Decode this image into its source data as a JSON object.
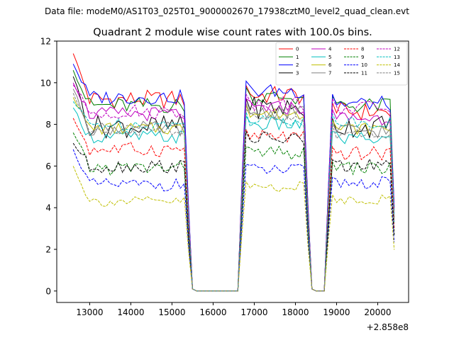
{
  "figure": {
    "suptitle": "Data file: modeM0/AS1T03_025T01_9000002670_17938cztM0_level2_quad_clean.evt",
    "offset_label": "+2.858e8"
  },
  "chart_data": {
    "type": "line",
    "title": "Quadrant 2 module wise count rates with 100.0s bins.",
    "xlabel": "",
    "ylabel": "",
    "x_offset": 285800000,
    "xlim": [
      12200,
      20750
    ],
    "ylim": [
      -0.55,
      12.0
    ],
    "xticks": [
      13000,
      14000,
      15000,
      16000,
      17000,
      18000,
      19000,
      20000
    ],
    "xtick_labels": [
      "13000",
      "14000",
      "15000",
      "16000",
      "17000",
      "18000",
      "19000",
      "20000"
    ],
    "yticks": [
      0,
      2,
      4,
      6,
      8,
      10,
      12
    ],
    "ytick_labels": [
      "0",
      "2",
      "4",
      "6",
      "8",
      "10",
      "12"
    ],
    "grid": false,
    "legend_position": "top-right",
    "legend_columns": 4,
    "segments": [
      {
        "x_start": 12600,
        "x_end": 15400,
        "step": 100
      },
      {
        "x_start": 16700,
        "x_end": 18300,
        "step": 100
      },
      {
        "x_start": 18800,
        "x_end": 20400,
        "step": 100
      }
    ],
    "gap_level": 0.0,
    "series": [
      {
        "name": "0",
        "color": "#ff0000",
        "dash": "solid",
        "levels": [
          11.4,
          9.2,
          9.4,
          8.6
        ],
        "amp": 0.45
      },
      {
        "name": "1",
        "color": "#008000",
        "dash": "solid",
        "levels": [
          10.6,
          8.9,
          9.3,
          8.9
        ],
        "amp": 0.4
      },
      {
        "name": "2",
        "color": "#0000ff",
        "dash": "solid",
        "levels": [
          10.9,
          9.3,
          9.6,
          9.0
        ],
        "amp": 0.35
      },
      {
        "name": "3",
        "color": "#000000",
        "dash": "solid",
        "levels": [
          10.3,
          7.9,
          8.8,
          7.9
        ],
        "amp": 0.55
      },
      {
        "name": "4",
        "color": "#bf00bf",
        "dash": "solid",
        "levels": [
          10.0,
          8.5,
          8.8,
          8.3
        ],
        "amp": 0.35
      },
      {
        "name": "5",
        "color": "#00bfbf",
        "dash": "solid",
        "levels": [
          8.8,
          7.4,
          8.0,
          7.3
        ],
        "amp": 0.35
      },
      {
        "name": "6",
        "color": "#bfbf00",
        "dash": "solid",
        "levels": [
          9.3,
          7.8,
          8.5,
          7.8
        ],
        "amp": 0.3
      },
      {
        "name": "7",
        "color": "#808080",
        "dash": "solid",
        "levels": [
          9.7,
          7.8,
          8.6,
          7.7
        ],
        "amp": 0.35
      },
      {
        "name": "8",
        "color": "#ff0000",
        "dash": "dashed",
        "levels": [
          8.3,
          6.8,
          7.4,
          6.6
        ],
        "amp": 0.35
      },
      {
        "name": "9",
        "color": "#008000",
        "dash": "dashed",
        "levels": [
          7.6,
          5.9,
          6.6,
          5.9
        ],
        "amp": 0.35
      },
      {
        "name": "10",
        "color": "#0000ff",
        "dash": "dashed",
        "levels": [
          6.8,
          5.1,
          5.8,
          5.2
        ],
        "amp": 0.3
      },
      {
        "name": "11",
        "color": "#000000",
        "dash": "dashed",
        "levels": [
          7.1,
          6.0,
          7.3,
          6.0
        ],
        "amp": 0.35
      },
      {
        "name": "12",
        "color": "#bf00bf",
        "dash": "dashed",
        "levels": [
          9.9,
          8.6,
          9.0,
          8.8
        ],
        "amp": 0.35
      },
      {
        "name": "13",
        "color": "#00bfbf",
        "dash": "dashed",
        "levels": [
          9.1,
          8.0,
          8.2,
          8.1
        ],
        "amp": 0.3
      },
      {
        "name": "14",
        "color": "#bfbf00",
        "dash": "dashed",
        "levels": [
          6.0,
          4.3,
          5.0,
          4.4
        ],
        "amp": 0.25
      },
      {
        "name": "15",
        "color": "#808080",
        "dash": "dashed",
        "levels": [
          9.5,
          7.7,
          8.3,
          7.6
        ],
        "amp": 0.3
      }
    ]
  }
}
